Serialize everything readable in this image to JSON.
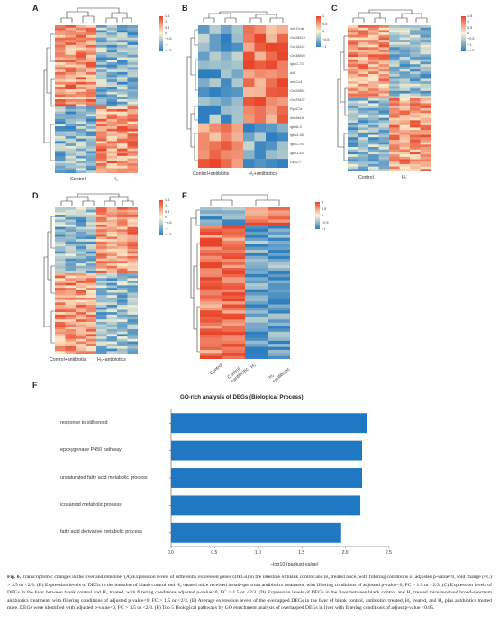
{
  "panels": {
    "A": {
      "label": "A",
      "groups": [
        "Control",
        "H₂"
      ],
      "legend_ticks": [
        "1.5",
        "1",
        "0.5",
        "0",
        "−0.5",
        "−1",
        "−1.5"
      ]
    },
    "B": {
      "label": "B",
      "groups": [
        "Control+antibiotis",
        "H₂+antibiotics"
      ],
      "legend_ticks": [
        "1",
        "0.5",
        "0",
        "−0.5",
        "−1"
      ],
      "genes": [
        "mir-7b-ab",
        "Gm28519",
        "Gm15241",
        "Gm38805",
        "Igkv1-73",
        "Ai6",
        "mir-Cc3",
        "Gm29881",
        "Gm29437",
        "Rps27a",
        "mir-6b16",
        "Ighv8-3",
        "Ighv4-36",
        "Igkv1-76",
        "Igkv1-15",
        "Rps27l"
      ]
    },
    "C": {
      "label": "C",
      "groups": [
        "Control",
        "H₂"
      ],
      "legend_ticks": [
        "1.5",
        "1",
        "0.5",
        "0",
        "−0.5",
        "−1",
        "−1.5"
      ]
    },
    "D": {
      "label": "D",
      "groups": [
        "Control+antibiotis",
        "H₂+antibiotics"
      ],
      "legend_ticks": [
        "1.5",
        "1",
        "0.5",
        "0",
        "−0.5",
        "−1",
        "−1.5"
      ]
    },
    "E": {
      "label": "E",
      "groups": [
        "Control",
        "Control\n+antibiotic",
        "H₂",
        "H₂\n+antibiotic"
      ],
      "legend_ticks": [
        "1",
        "0.5",
        "0",
        "−0.5",
        "−1"
      ]
    },
    "F": {
      "label": "F"
    }
  },
  "chart_data": {
    "type": "bar",
    "orientation": "horizontal",
    "title": "GO-rich analysis of DEGs (Biological Process)",
    "xlabel": "−log10 (padjust-value)",
    "ylabel": "",
    "categories": [
      "response to stilbenoid",
      "epoxygenase P450 pathway",
      "unsaturated fatty acid metabolic process",
      "icosanoid metabolic process",
      "fatty acid derivative metabolic process"
    ],
    "values": [
      2.25,
      2.19,
      2.19,
      2.17,
      1.95
    ],
    "xlim": [
      0,
      2.5
    ],
    "xticks": [
      "0.0",
      "0.5",
      "1.0",
      "1.5",
      "2.0",
      "2.5"
    ],
    "bar_color": "#1f78c1",
    "grid": false
  },
  "caption": {
    "fig_label": "Fig. 6.",
    "text": "Transcriptomic changes in the liver and intestine. (A) Expression levels of differently expressed genes (DEGs) in the intestine of blank control and H₂ treated mice, with filtering conditions of adjusted p-value<0, fold change (FC) > 1.5 or <2/3. (B) Expression levels of DEGs in the intestine of blank control and H₂ treated mice received broad-spectrum antibiotics treatment, with filtering conditions of adjusted p-value<0, FC > 1.5 or <2/3. (C) Expression levels of DEGs in the liver between blank control and H₂ treated, with filtering conditions adjusted p-value<0, FC > 1.5 or <2/3. (D) Expression levels of DEGs in the liver between blank control and H₂ treated mice received broad-spectrum antibiotics treatment, with filtering conditions of adjusted p-value<0, FC > 1.5 or <2/3. (E) Average expression levels of the overlapped DEGs in the liver of blank control, antibiotics treated, H₂ treated, and H₂ plus antibiotics treated mice. DEGs were identified with adjusted p-value<0, FC > 1.5 or <2/3. (F) Top 5 Biological pathways by GO enrichment analysis of overlapped DEGs in liver with filtering conditions of adjust p-value <0.05."
  },
  "colors": {
    "high": "#e8452a",
    "mid": "#fdf6d5",
    "low": "#2f7fc0",
    "bar": "#1f78c1"
  }
}
